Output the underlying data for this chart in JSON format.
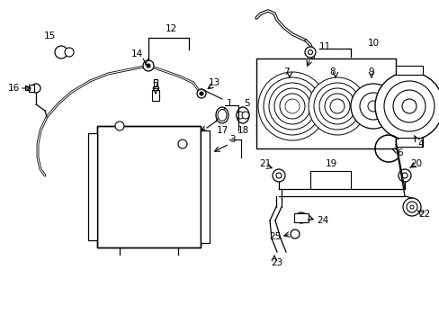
{
  "bg_color": "#ffffff",
  "fig_width": 4.89,
  "fig_height": 3.6,
  "dpi": 100,
  "line_color": "#000000",
  "font_size": 7.5
}
